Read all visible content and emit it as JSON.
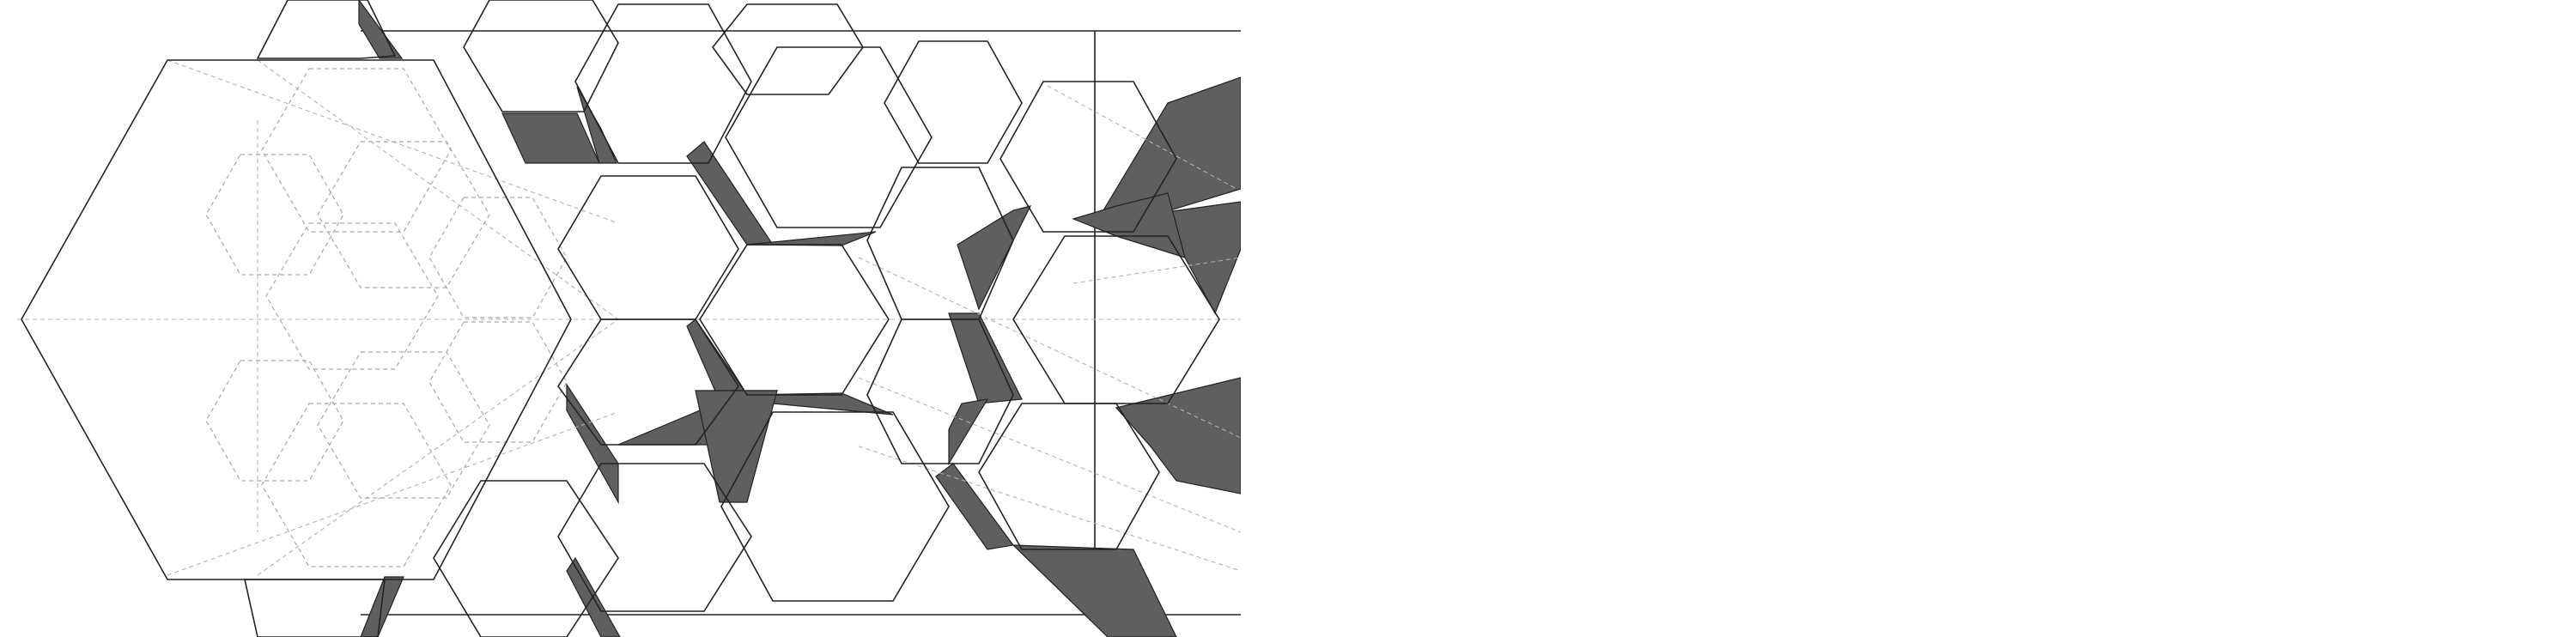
{
  "figure": {
    "kind": "hexagonal tiling illustration",
    "colors": {
      "background": "#ffffff",
      "outline": "#222222",
      "shade": "#5f5f5f",
      "guide": "#a8a8a8"
    }
  }
}
